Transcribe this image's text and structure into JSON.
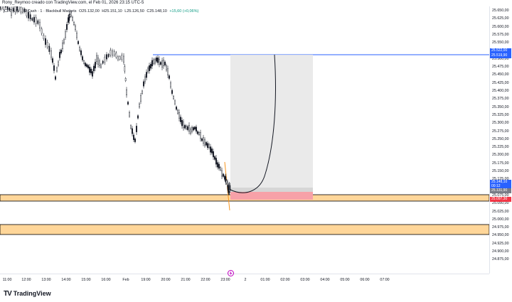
{
  "header": {
    "author_line": "Rony_Reymoo creado con TradingView.com, el Feb 01, 2026 23:15 UTC-5"
  },
  "legend": {
    "symbol": "CFD US 100 Cash · 1 · Blackbull Markets",
    "open": "O25.132,00",
    "high": "H25.151,10",
    "low": "L25.126,50",
    "close": "C25.148,10",
    "change": "+15,60 (+0,06%)"
  },
  "price_axis": {
    "labels": [
      "25.650,00",
      "25.625,00",
      "25.600,00",
      "25.575,00",
      "25.550,00",
      "25.525,00",
      "25.500,00",
      "25.475,00",
      "25.450,00",
      "25.425,00",
      "25.400,00",
      "25.375,00",
      "25.350,00",
      "25.325,00",
      "25.300,00",
      "25.275,00",
      "25.250,00",
      "25.225,00",
      "25.200,00",
      "25.175,00",
      "25.150,00",
      "25.125,00",
      "25.100,00",
      "25.075,00",
      "25.050,00",
      "25.025,00",
      "25.000,00",
      "24.975,00",
      "24.950,00",
      "24.925,00",
      "24.900,00",
      "24.875,00"
    ],
    "tags": {
      "target": "25.522,00",
      "target_color": "#2962ff",
      "target_second": "25.519,90",
      "current": "25.148,10",
      "countdown": "00:12",
      "current_color": "#2962ff",
      "entry": "25.131,90",
      "entry_color": "#787b86",
      "stop": "25.097,30",
      "stop_color": "#f23645"
    }
  },
  "time_axis": {
    "labels": [
      "11:00",
      "12:00",
      "13:00",
      "14:00",
      "15:00",
      "16:00",
      "Feb",
      "19:00",
      "20:00",
      "21:00",
      "22:00",
      "23:00",
      "2",
      "01:00",
      "02:00",
      "03:00",
      "04:00",
      "05:00",
      "06:00",
      "07:00"
    ]
  },
  "colors": {
    "zone_fill": "#ffd699",
    "zone_border": "#000000",
    "target_line": "#2962ff",
    "profit_box": "#e6e6e6",
    "stop_box": "#f7a1a8",
    "candles": "#131722"
  },
  "brand": {
    "logo": "TV",
    "name": "TradingView"
  },
  "icons": {
    "flash": "flash-icon"
  }
}
